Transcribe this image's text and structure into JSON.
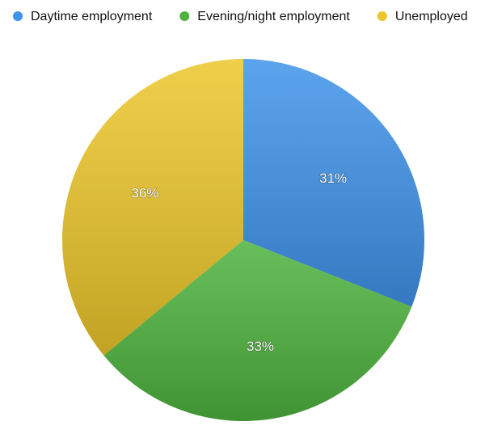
{
  "chart_data": {
    "type": "pie",
    "categories": [
      "Daytime employment",
      "Evening/night employment",
      "Unemployed"
    ],
    "values": [
      31,
      33,
      36
    ],
    "value_labels": [
      "31%",
      "33%",
      "36%"
    ],
    "colors": [
      "#3f93ea",
      "#4db33d",
      "#ecc62a"
    ],
    "start_angle": 0,
    "direction": "clockwise",
    "legend": "top"
  }
}
